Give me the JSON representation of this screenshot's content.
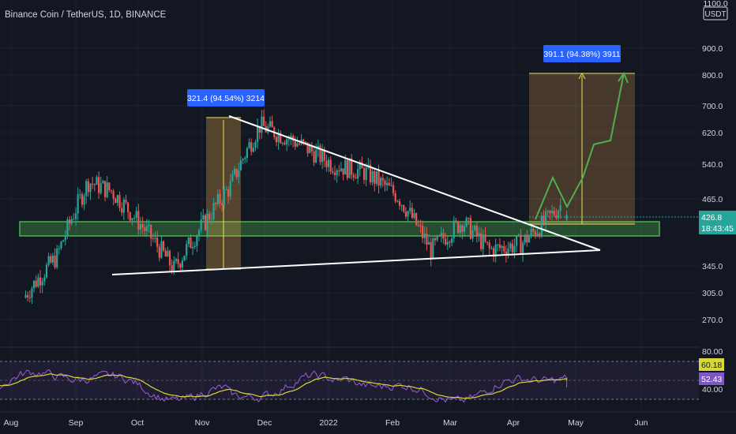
{
  "header": {
    "title": "Binance Coin / TetherUS, 1D, BINANCE"
  },
  "price_scale": {
    "currency": "USDT",
    "top_label": "1100.0",
    "ticks": [
      "900.0",
      "800.0",
      "700.0",
      "620.0",
      "540.0",
      "465.0",
      "345.0",
      "305.0",
      "270.0"
    ]
  },
  "current_price": {
    "value": "426.8",
    "countdown": "18:43:45",
    "color": "#26a69a"
  },
  "rsi": {
    "ticks": [
      "80.00",
      "40.00"
    ],
    "rsi_value": "52.43",
    "ma_value": "60.18",
    "rsi_color": "#9c5cd4",
    "ma_color": "#d7d83b"
  },
  "time_axis": {
    "labels": [
      "Aug",
      "Sep",
      "Oct",
      "Nov",
      "Dec",
      "2022",
      "Feb",
      "Mar",
      "Apr",
      "May",
      "Jun"
    ]
  },
  "annotations": {
    "measure_left": "321.4 (94.54%) 3214",
    "measure_right": "391.1 (94.38%) 3911"
  },
  "colors": {
    "up": "#26a69a",
    "down": "#ef5350",
    "support_zone": "#4caf50",
    "measure_label_bg": "#2962ff",
    "projection": "#4caf50",
    "trendline": "#ffffff"
  },
  "chart_data": {
    "type": "candlestick",
    "series": [
      {
        "name": "BNB/USDT",
        "interval": "1D"
      }
    ],
    "y_scale": "log",
    "ylim": [
      270,
      1100
    ],
    "price_segments": [
      {
        "start": "2021-07-25",
        "open": 300,
        "close": 360
      },
      {
        "start": "2021-08-10",
        "open": 360,
        "close": 500
      },
      {
        "start": "2021-08-25",
        "open": 500,
        "close": 480
      },
      {
        "start": "2021-09-05",
        "open": 480,
        "close": 410
      },
      {
        "start": "2021-09-20",
        "open": 410,
        "close": 340
      },
      {
        "start": "2021-10-05",
        "open": 340,
        "close": 420
      },
      {
        "start": "2021-10-20",
        "open": 420,
        "close": 490
      },
      {
        "start": "2021-11-01",
        "open": 490,
        "close": 640
      },
      {
        "start": "2021-11-15",
        "open": 640,
        "close": 600
      },
      {
        "start": "2021-12-01",
        "open": 600,
        "close": 540
      },
      {
        "start": "2021-12-20",
        "open": 540,
        "close": 520
      },
      {
        "start": "2022-01-05",
        "open": 520,
        "close": 470
      },
      {
        "start": "2022-01-20",
        "open": 470,
        "close": 370
      },
      {
        "start": "2022-02-05",
        "open": 370,
        "close": 420
      },
      {
        "start": "2022-02-20",
        "open": 420,
        "close": 370
      },
      {
        "start": "2022-03-05",
        "open": 370,
        "close": 380
      },
      {
        "start": "2022-03-20",
        "open": 380,
        "close": 420
      },
      {
        "start": "2022-04-01",
        "open": 420,
        "close": 450
      },
      {
        "start": "2022-04-08",
        "open": 450,
        "close": 426.8
      }
    ],
    "support_zone": [
      392,
      412
    ],
    "descending_trendline": [
      {
        "date": "2021-11-10",
        "price": 670
      },
      {
        "date": "2022-05-15",
        "price": 375
      }
    ],
    "ascending_trendline": [
      {
        "date": "2021-09-20",
        "price": 335
      },
      {
        "date": "2022-05-15",
        "price": 375
      }
    ],
    "projection_path": [
      426.8,
      470,
      410,
      560,
      470,
      650,
      540,
      800
    ],
    "target": 800,
    "rsi_ylim": [
      20,
      95
    ]
  }
}
